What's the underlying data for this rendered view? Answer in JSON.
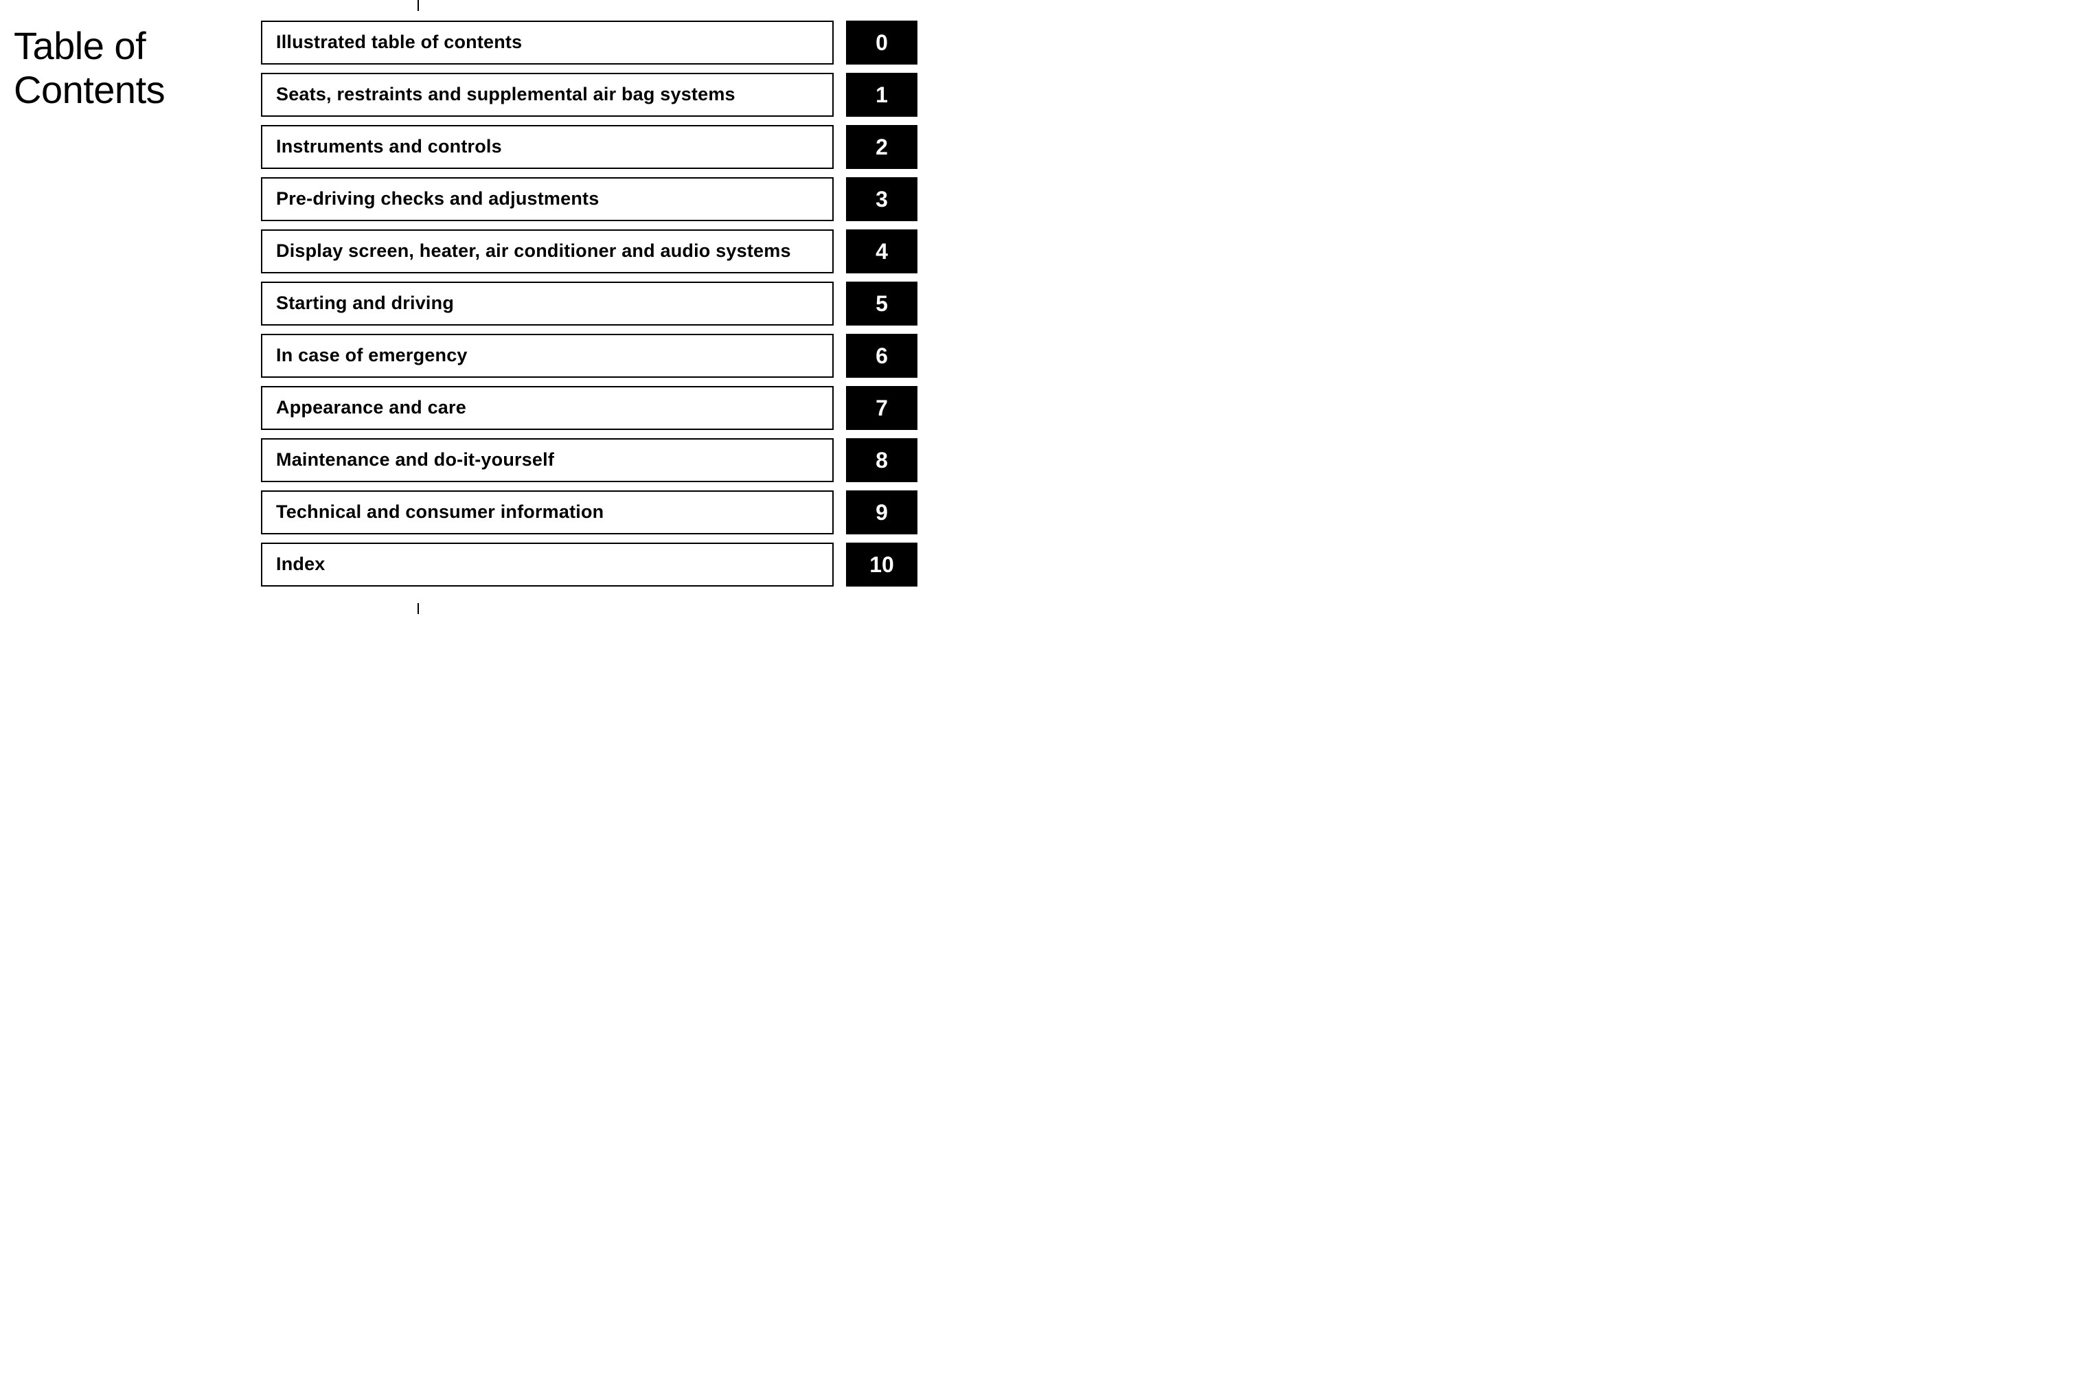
{
  "title_line1": "Table of",
  "title_line2": "Contents",
  "colors": {
    "background": "#ffffff",
    "text": "#000000",
    "box_border": "#000000",
    "number_box_bg": "#000000",
    "number_box_text": "#ffffff"
  },
  "typography": {
    "title_fontsize": 56,
    "title_weight": 400,
    "item_fontsize": 27,
    "item_weight": 700,
    "number_fontsize": 32,
    "number_weight": 700,
    "font_family": "Arial, Helvetica, sans-serif"
  },
  "layout": {
    "title_column_width": 340,
    "number_box_width": 104,
    "row_gap": 12,
    "box_min_height": 64,
    "border_width": 2
  },
  "toc_items": [
    {
      "label": "Illustrated table of contents",
      "number": "0"
    },
    {
      "label": "Seats, restraints and supplemental air bag systems",
      "number": "1"
    },
    {
      "label": "Instruments and controls",
      "number": "2"
    },
    {
      "label": "Pre-driving checks and adjustments",
      "number": "3"
    },
    {
      "label": "Display screen, heater, air conditioner and audio systems",
      "number": "4"
    },
    {
      "label": "Starting and driving",
      "number": "5"
    },
    {
      "label": "In case of emergency",
      "number": "6"
    },
    {
      "label": "Appearance and care",
      "number": "7"
    },
    {
      "label": "Maintenance and do-it-yourself",
      "number": "8"
    },
    {
      "label": "Technical and consumer information",
      "number": "9"
    },
    {
      "label": "Index",
      "number": "10"
    }
  ]
}
